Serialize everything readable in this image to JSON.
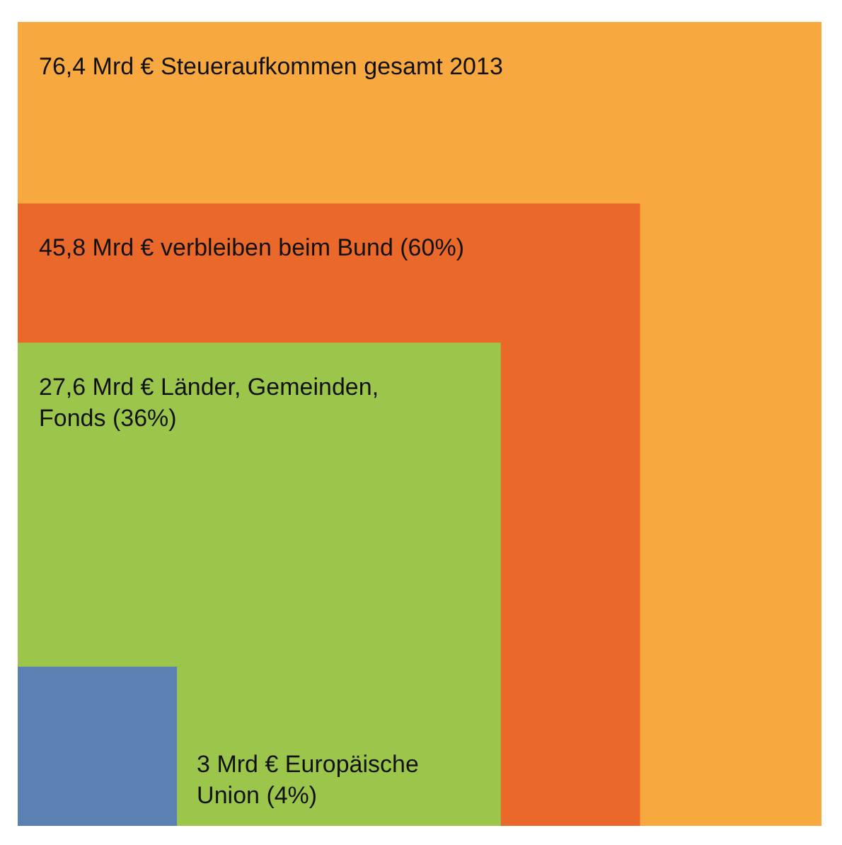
{
  "chart_data": {
    "type": "other",
    "categories": [
      "Steueraufkommen gesamt 2013",
      "verbleiben beim Bund (60%)",
      "Länder, Gemeinden,\nFonds (36%)",
      "Europäische\nUnion (4%)"
    ],
    "values": [
      76.4,
      45.8,
      27.6,
      3
    ],
    "value_labels": [
      "76,4 Mrd €",
      "45,8 Mrd €",
      "27,6 Mrd €",
      "3 Mrd €"
    ],
    "colors": [
      "#f7a83e",
      "#e9682a",
      "#9cc54c",
      "#5b80b2"
    ]
  }
}
